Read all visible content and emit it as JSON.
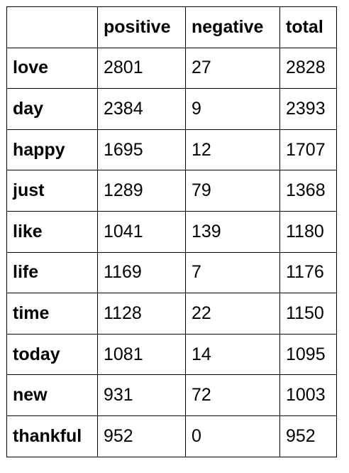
{
  "table": {
    "columns": [
      "",
      "positive",
      "negative",
      "total"
    ],
    "rows": [
      {
        "word": "love",
        "positive": "2801",
        "negative": "27",
        "total": "2828"
      },
      {
        "word": "day",
        "positive": "2384",
        "negative": "9",
        "total": "2393"
      },
      {
        "word": "happy",
        "positive": "1695",
        "negative": "12",
        "total": "1707"
      },
      {
        "word": "just",
        "positive": "1289",
        "negative": "79",
        "total": "1368"
      },
      {
        "word": "like",
        "positive": "1041",
        "negative": "139",
        "total": "1180"
      },
      {
        "word": "life",
        "positive": "1169",
        "negative": "7",
        "total": "1176"
      },
      {
        "word": "time",
        "positive": "1128",
        "negative": "22",
        "total": "1150"
      },
      {
        "word": "today",
        "positive": "1081",
        "negative": "14",
        "total": "1095"
      },
      {
        "word": "new",
        "positive": "931",
        "negative": "72",
        "total": "1003"
      },
      {
        "word": "thankful",
        "positive": "952",
        "negative": "0",
        "total": "952"
      }
    ]
  }
}
